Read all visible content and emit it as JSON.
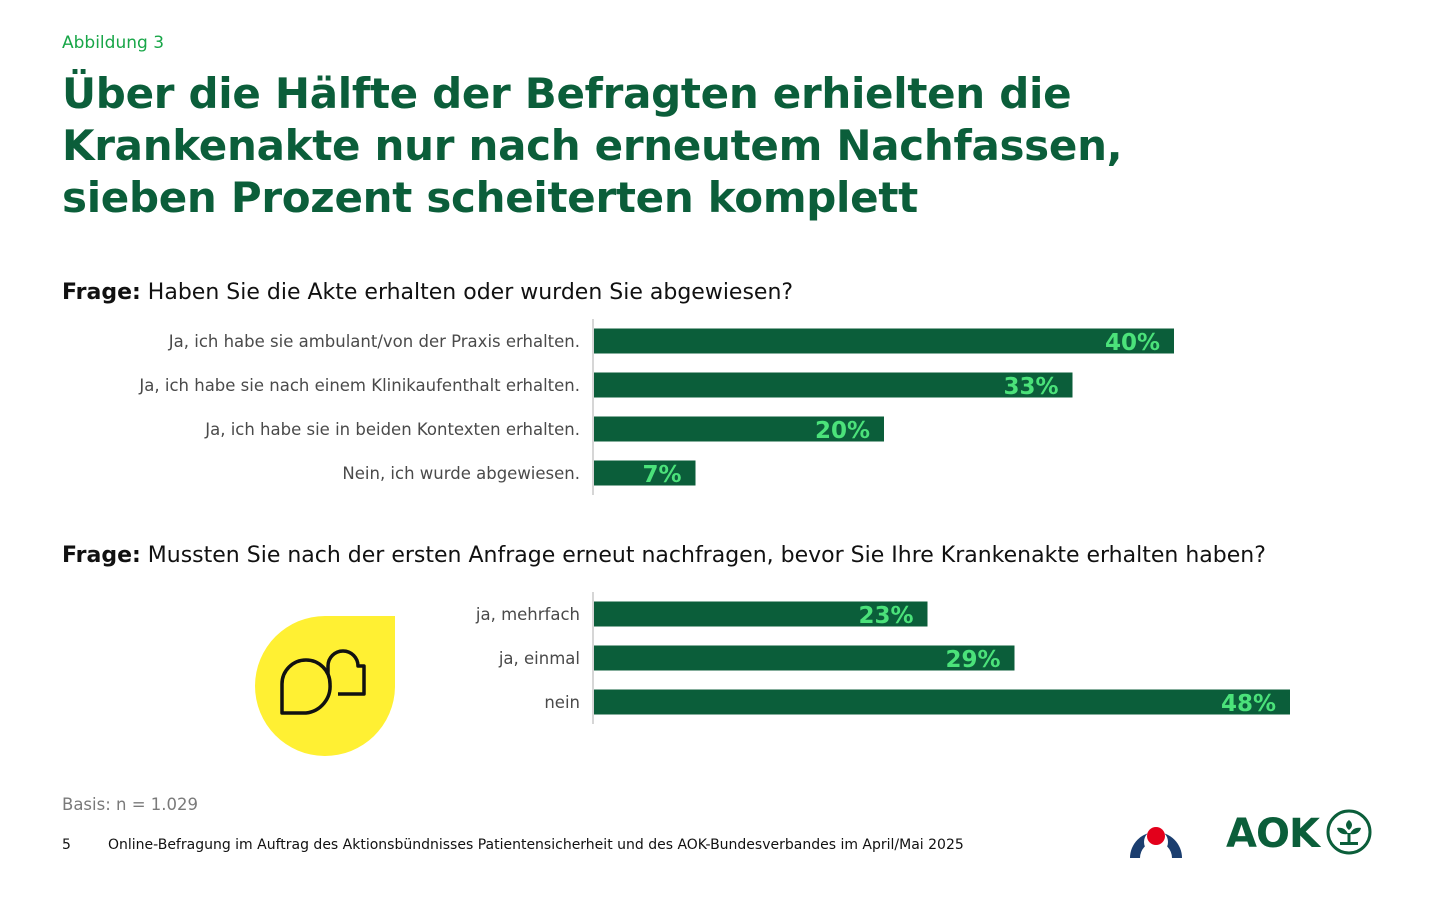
{
  "figure_label": "Abbildung 3",
  "headline": {
    "line1": "Über die Hälfte der Befragten erhielten die",
    "line2": "Krankenakte nur nach erneutem Nachfassen,",
    "line3": "sieben Prozent scheiterten komplett"
  },
  "colors": {
    "bar": "#0b5e3a",
    "value_text": "#4be27a",
    "accent_green": "#18a648",
    "deco_yellow": "#fff033",
    "aps_navy": "#1b3e6f",
    "aps_red": "#e3001b"
  },
  "chart_data": [
    {
      "type": "bar",
      "orientation": "horizontal",
      "question_prefix": "Frage:",
      "question": "Haben Sie die Akte erhalten oder wurden Sie abgewiesen?",
      "categories": [
        "Ja, ich habe sie ambulant/von der Praxis erhalten.",
        "Ja, ich habe sie nach einem Klinikaufenthalt erhalten.",
        "Ja, ich habe sie in beiden Kontexten erhalten.",
        "Nein, ich wurde abgewiesen."
      ],
      "values": [
        40,
        33,
        20,
        7
      ],
      "value_labels": [
        "40%",
        "33%",
        "20%",
        "7%"
      ],
      "unit": "%",
      "xlim": [
        0,
        100
      ],
      "grid": false
    },
    {
      "type": "bar",
      "orientation": "horizontal",
      "question_prefix": "Frage:",
      "question": "Mussten Sie nach der ersten Anfrage erneut nachfragen, bevor Sie Ihre Krankenakte erhalten haben?",
      "categories": [
        "ja, mehrfach",
        "ja, einmal",
        "nein"
      ],
      "values": [
        23,
        29,
        48
      ],
      "value_labels": [
        "23%",
        "29%",
        "48%"
      ],
      "unit": "%",
      "xlim": [
        0,
        100
      ],
      "grid": false
    }
  ],
  "footer": {
    "base": "Basis: n = 1.029",
    "page_number": "5",
    "source": "Online-Befragung im Auftrag des Aktionsbündnisses Patientensicherheit und des AOK-Bundesverbandes im April/Mai 2025"
  },
  "logos": {
    "aok_text": "AOK",
    "aps_icon": "aps-logo-icon",
    "aok_icon": "aok-tree-icon",
    "deco_icon": "speech-bubbles-icon"
  }
}
